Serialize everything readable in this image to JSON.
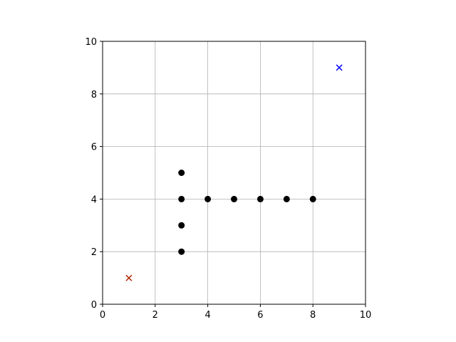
{
  "chart_data": {
    "type": "scatter",
    "title": "",
    "xlabel": "",
    "ylabel": "",
    "xlim": [
      0,
      10
    ],
    "ylim": [
      0,
      10
    ],
    "grid": true,
    "xticks": [
      0,
      2,
      4,
      6,
      8,
      10
    ],
    "yticks": [
      0,
      2,
      4,
      6,
      8,
      10
    ],
    "series": [
      {
        "marker": "circle",
        "color": "#000000",
        "points": [
          {
            "x": 3,
            "y": 5
          },
          {
            "x": 3,
            "y": 4
          },
          {
            "x": 3,
            "y": 3
          },
          {
            "x": 3,
            "y": 2
          },
          {
            "x": 4,
            "y": 4
          },
          {
            "x": 5,
            "y": 4
          },
          {
            "x": 6,
            "y": 4
          },
          {
            "x": 7,
            "y": 4
          },
          {
            "x": 8,
            "y": 4
          }
        ]
      },
      {
        "marker": "x",
        "color": "#b22400",
        "points": [
          {
            "x": 1,
            "y": 1
          }
        ]
      },
      {
        "marker": "x",
        "color": "#0000ff",
        "points": [
          {
            "x": 9,
            "y": 9
          }
        ]
      }
    ]
  }
}
